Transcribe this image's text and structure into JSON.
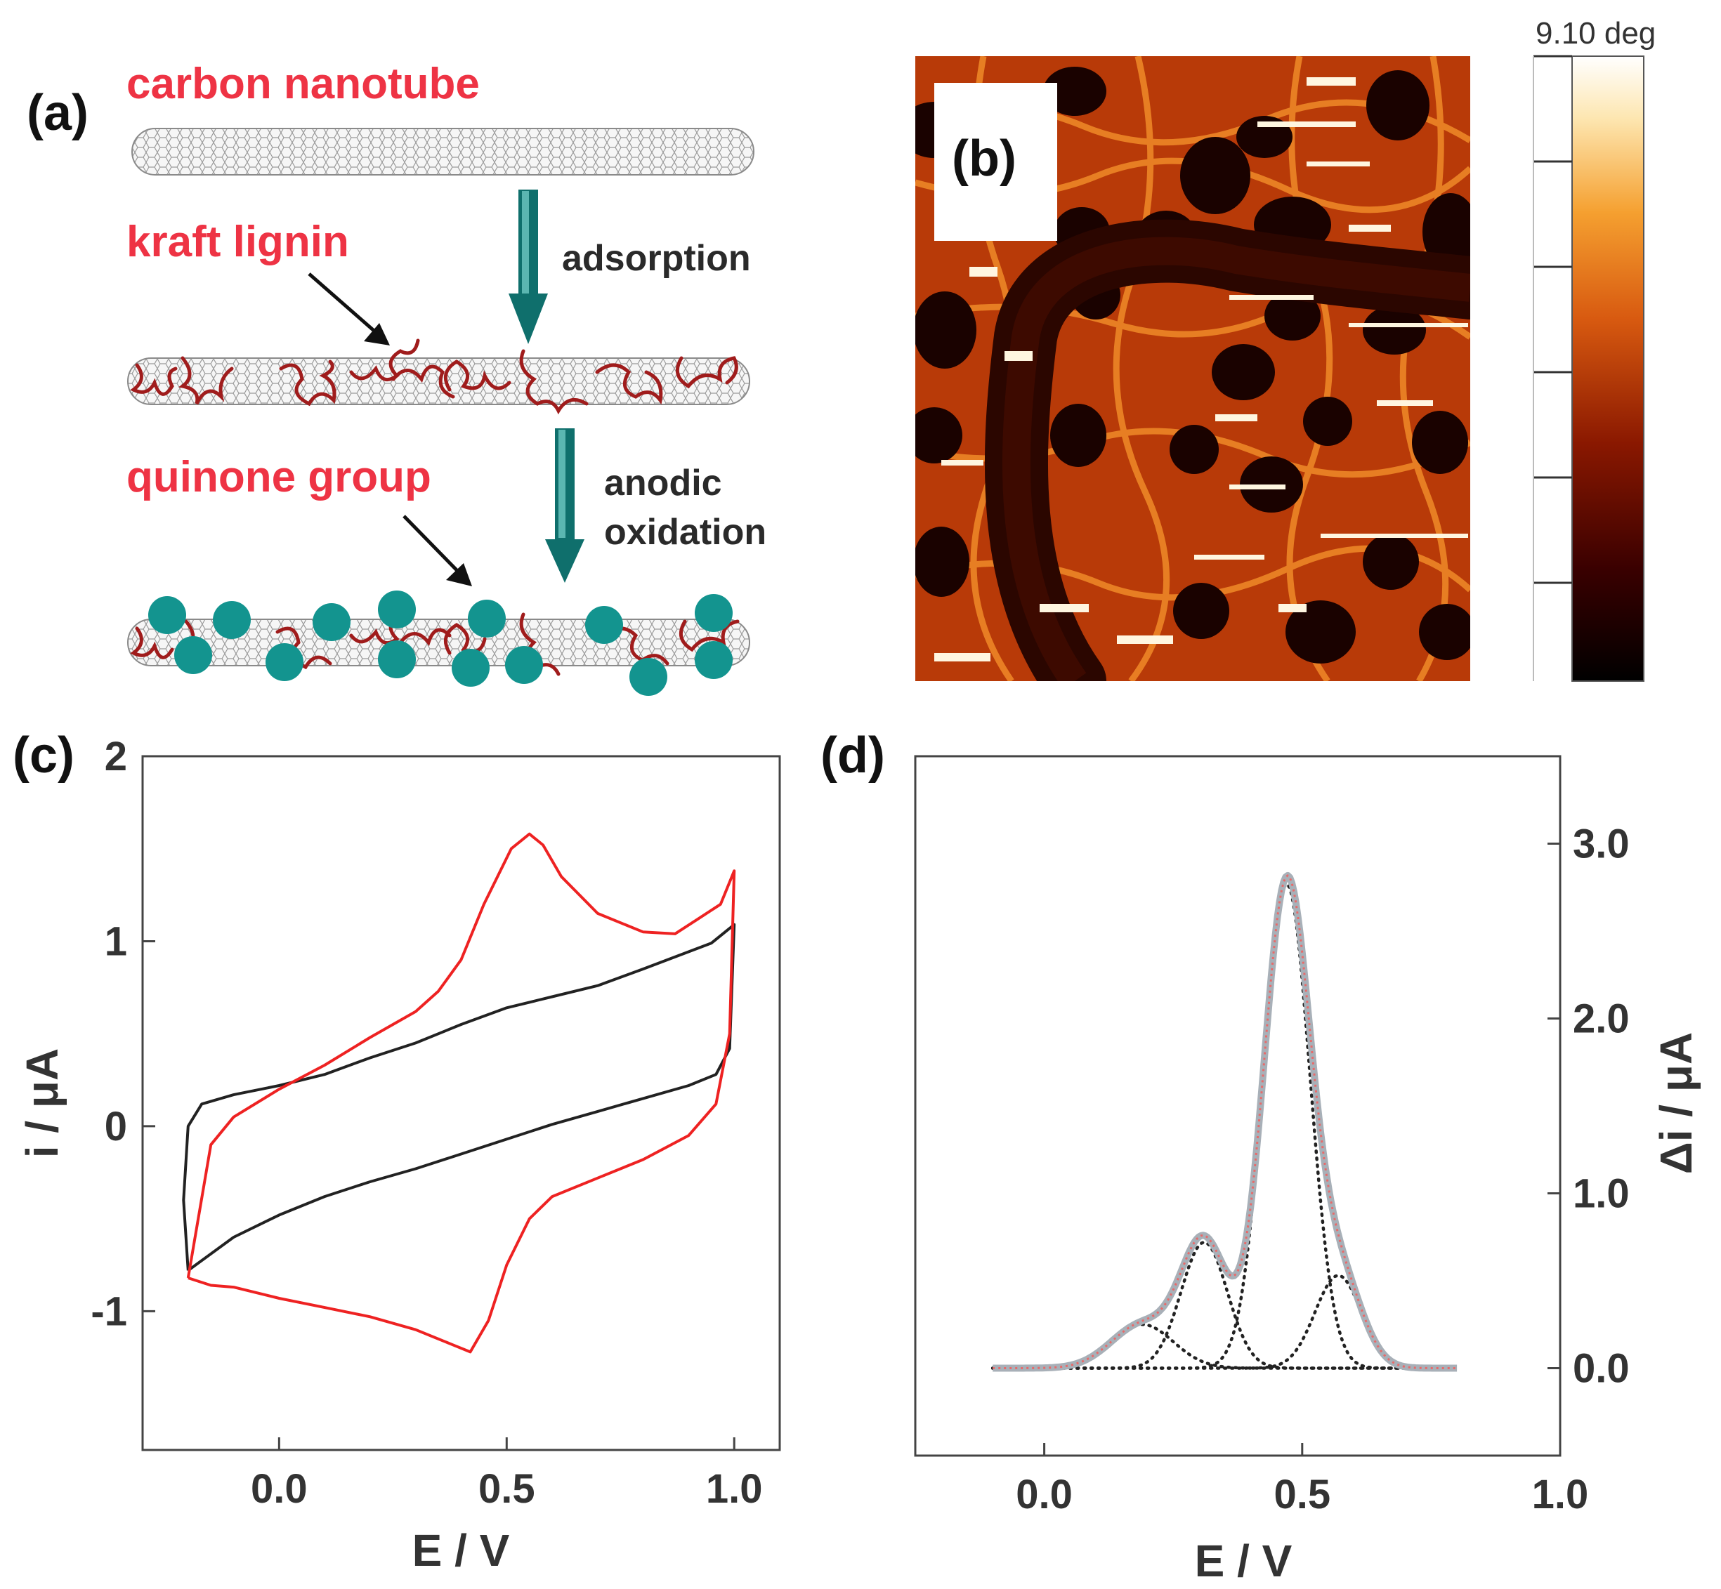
{
  "panel_labels": {
    "a": "(a)",
    "b": "(b)",
    "c": "(c)",
    "d": "(d)"
  },
  "schematic": {
    "carbon_nanotube": "carbon nanotube",
    "kraft_lignin": "kraft lignin",
    "quinone_group": "quinone group",
    "adsorption": "adsorption",
    "anodic": "anodic",
    "oxidation": "oxidation",
    "colors": {
      "label": "#ee3344",
      "lignin": "#a01c1c",
      "quinone": "#13948f",
      "arrow": "#0f6f6c"
    }
  },
  "afm": {
    "colorbar_max_label": "9.10 deg",
    "colorbar_stops": [
      "#000000",
      "#3a0000",
      "#8a1800",
      "#d85a10",
      "#f5a030",
      "#fde6b0",
      "#ffffff"
    ]
  },
  "chart_data": [
    {
      "id": "c",
      "type": "line",
      "title": "",
      "xlabel": "E / V",
      "ylabel": "i / μA",
      "xlim": [
        -0.3,
        1.1
      ],
      "ylim": [
        -1.75,
        2.0
      ],
      "xticks": [
        0.0,
        0.5,
        1.0
      ],
      "xtick_labels": [
        "0.0",
        "0.5",
        "1.0"
      ],
      "yticks": [
        2,
        1,
        0,
        -1
      ],
      "ytick_labels": [
        "2",
        "1",
        "0",
        "-1"
      ],
      "series": [
        {
          "name": "black CV",
          "color": "#222222",
          "points": [
            [
              -0.2,
              -0.78
            ],
            [
              -0.1,
              -0.6
            ],
            [
              0.0,
              -0.48
            ],
            [
              0.1,
              -0.38
            ],
            [
              0.2,
              -0.3
            ],
            [
              0.3,
              -0.23
            ],
            [
              0.4,
              -0.15
            ],
            [
              0.5,
              -0.07
            ],
            [
              0.6,
              0.01
            ],
            [
              0.7,
              0.08
            ],
            [
              0.8,
              0.15
            ],
            [
              0.9,
              0.22
            ],
            [
              0.96,
              0.28
            ],
            [
              0.99,
              0.42
            ],
            [
              1.0,
              1.09
            ],
            [
              0.95,
              0.99
            ],
            [
              0.8,
              0.85
            ],
            [
              0.7,
              0.76
            ],
            [
              0.6,
              0.7
            ],
            [
              0.5,
              0.64
            ],
            [
              0.4,
              0.55
            ],
            [
              0.3,
              0.45
            ],
            [
              0.2,
              0.37
            ],
            [
              0.1,
              0.28
            ],
            [
              0.0,
              0.22
            ],
            [
              -0.1,
              0.17
            ],
            [
              -0.17,
              0.12
            ],
            [
              -0.2,
              0.0
            ],
            [
              -0.21,
              -0.4
            ],
            [
              -0.2,
              -0.78
            ]
          ]
        },
        {
          "name": "red CV",
          "color": "#ee2222",
          "points": [
            [
              -0.2,
              -0.82
            ],
            [
              -0.15,
              -0.86
            ],
            [
              -0.1,
              -0.87
            ],
            [
              0.0,
              -0.93
            ],
            [
              0.1,
              -0.98
            ],
            [
              0.2,
              -1.03
            ],
            [
              0.3,
              -1.1
            ],
            [
              0.38,
              -1.18
            ],
            [
              0.42,
              -1.22
            ],
            [
              0.46,
              -1.05
            ],
            [
              0.5,
              -0.75
            ],
            [
              0.55,
              -0.5
            ],
            [
              0.6,
              -0.38
            ],
            [
              0.7,
              -0.28
            ],
            [
              0.8,
              -0.18
            ],
            [
              0.9,
              -0.05
            ],
            [
              0.96,
              0.12
            ],
            [
              0.99,
              0.5
            ],
            [
              1.0,
              1.38
            ],
            [
              0.97,
              1.2
            ],
            [
              0.92,
              1.12
            ],
            [
              0.87,
              1.04
            ],
            [
              0.8,
              1.05
            ],
            [
              0.7,
              1.15
            ],
            [
              0.62,
              1.35
            ],
            [
              0.58,
              1.52
            ],
            [
              0.55,
              1.58
            ],
            [
              0.51,
              1.5
            ],
            [
              0.45,
              1.2
            ],
            [
              0.4,
              0.9
            ],
            [
              0.35,
              0.73
            ],
            [
              0.3,
              0.62
            ],
            [
              0.2,
              0.48
            ],
            [
              0.1,
              0.33
            ],
            [
              0.0,
              0.2
            ],
            [
              -0.1,
              0.05
            ],
            [
              -0.15,
              -0.1
            ],
            [
              -0.2,
              -0.82
            ]
          ]
        }
      ]
    },
    {
      "id": "d",
      "type": "line",
      "title": "",
      "xlabel": "E / V",
      "ylabel": "Δi / μA",
      "xlim": [
        -0.25,
        1.0
      ],
      "ylim": [
        -0.5,
        3.5
      ],
      "xticks": [
        0.0,
        0.5,
        1.0
      ],
      "xtick_labels": [
        "0.0",
        "0.5",
        "1.0"
      ],
      "yticks": [
        3.0,
        2.0,
        1.0,
        0.0
      ],
      "ytick_labels": [
        "3.0",
        "2.0",
        "1.0",
        "0.0"
      ],
      "x_range": [
        -0.1,
        0.8
      ],
      "fitted_peaks": [
        {
          "center": 0.19,
          "amplitude": 0.25,
          "width": 0.06
        },
        {
          "center": 0.31,
          "amplitude": 0.72,
          "width": 0.045
        },
        {
          "center": 0.47,
          "amplitude": 2.77,
          "width": 0.045
        },
        {
          "center": 0.57,
          "amplitude": 0.53,
          "width": 0.045
        }
      ],
      "measured_color": "#a8b0b8",
      "fit_color": "#e86a6a",
      "component_color": "#222222"
    }
  ]
}
